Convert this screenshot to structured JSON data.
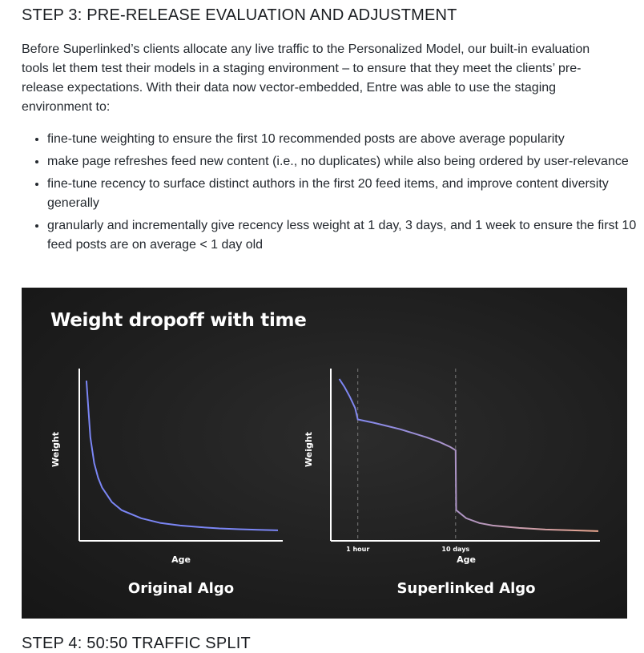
{
  "step3": {
    "heading": "STEP 3: PRE-RELEASE EVALUATION AND ADJUSTMENT",
    "intro": "Before Superlinked’s clients allocate any live traffic to the Personalized Model, our built-in evaluation tools let them test their models in a staging environment – to ensure that they meet the clients’ pre-release expectations. With their data now vector-embedded, Entre was able to use the staging environment to:",
    "bullets": [
      "fine-tune weighting to ensure the first 10 recommended posts are above average popularity",
      "make page refreshes feed new content (i.e., no duplicates) while also being ordered by user-relevance",
      "fine-tune recency to surface distinct authors in the first 20 feed items, and improve content diversity generally",
      "granularly and incrementally give recency less weight at 1 day, 3 days, and 1 week to ensure the first 10 feed posts are on average < 1 day old"
    ]
  },
  "figure": {
    "title": "Weight dropoff with time",
    "accent_start": "#7b86f5",
    "accent_end": "#eaa68e",
    "background": "#1e1e1e"
  },
  "chart_data": [
    {
      "type": "line",
      "title": "Original Algo",
      "xlabel": "Age",
      "ylabel": "Weight",
      "x_ticks": [],
      "ylim": [
        0,
        1
      ],
      "series": [
        {
          "x": [
            0.02,
            0.04,
            0.06,
            0.08,
            0.1,
            0.15,
            0.2,
            0.3,
            0.4,
            0.5,
            0.6,
            0.7,
            0.8,
            0.9,
            1.0
          ],
          "values": [
            0.97,
            0.62,
            0.46,
            0.37,
            0.31,
            0.22,
            0.17,
            0.12,
            0.09,
            0.075,
            0.065,
            0.057,
            0.052,
            0.048,
            0.045
          ]
        }
      ],
      "grid": false
    },
    {
      "type": "line",
      "title": "Superlinked Algo",
      "xlabel": "Age",
      "ylabel": "Weight",
      "x_ticks": [
        {
          "x": 0.09,
          "label": "1 hour"
        },
        {
          "x": 0.46,
          "label": "10 days"
        }
      ],
      "ylim": [
        0,
        1
      ],
      "series": [
        {
          "x": [
            0.02,
            0.04,
            0.06,
            0.08,
            0.09,
            0.15,
            0.2,
            0.25,
            0.3,
            0.35,
            0.4,
            0.44,
            0.46,
            0.462,
            0.5,
            0.55,
            0.6,
            0.7,
            0.8,
            0.9,
            1.0
          ],
          "values": [
            0.98,
            0.93,
            0.87,
            0.8,
            0.73,
            0.71,
            0.69,
            0.67,
            0.645,
            0.62,
            0.59,
            0.56,
            0.54,
            0.17,
            0.12,
            0.09,
            0.075,
            0.06,
            0.05,
            0.045,
            0.04
          ]
        }
      ],
      "grid": false
    }
  ],
  "step4": {
    "heading": "STEP 4: 50:50 TRAFFIC SPLIT"
  }
}
